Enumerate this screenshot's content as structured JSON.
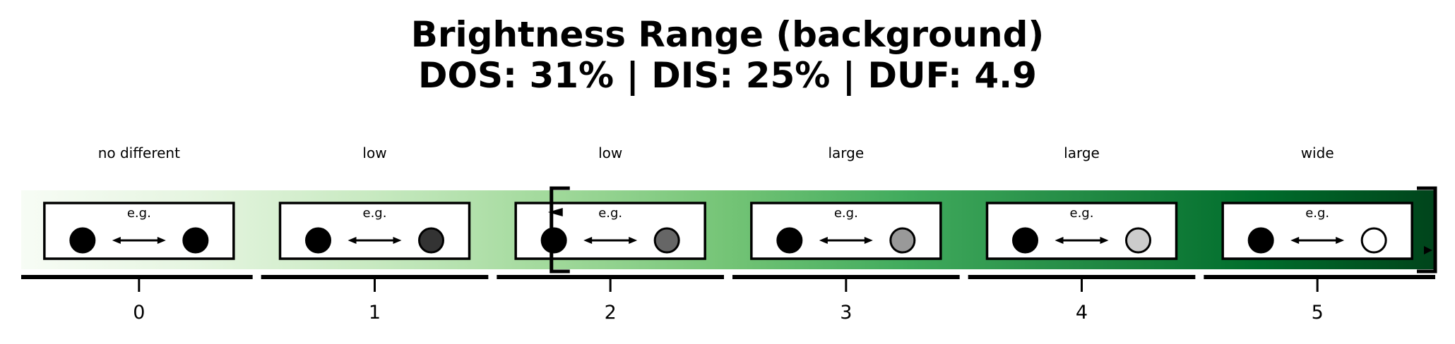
{
  "chart_data": {
    "type": "scale",
    "title": "Brightness Range (background)",
    "subtitle": "DOS: 31% | DIS: 25% | DUF: 4.9",
    "categories": [
      "0",
      "1",
      "2",
      "3",
      "4",
      "5"
    ],
    "category_labels": [
      "no different",
      "low",
      "low",
      "large",
      "large",
      "wide"
    ],
    "example_label": "e.g.",
    "example_left_color": "#000000",
    "example_right_colors": [
      "#000000",
      "#333333",
      "#666666",
      "#999999",
      "#cccccc",
      "#ffffff"
    ],
    "colormap": [
      "#f7fcf5",
      "#e5f5e0",
      "#c7e9c0",
      "#a1d99b",
      "#74c476",
      "#41ab5d",
      "#238b45",
      "#006d2c",
      "#00441b"
    ],
    "range_bracket": [
      1.75,
      5.5
    ],
    "marker_value": 1.75,
    "xlim": [
      -0.5,
      5.5
    ]
  }
}
